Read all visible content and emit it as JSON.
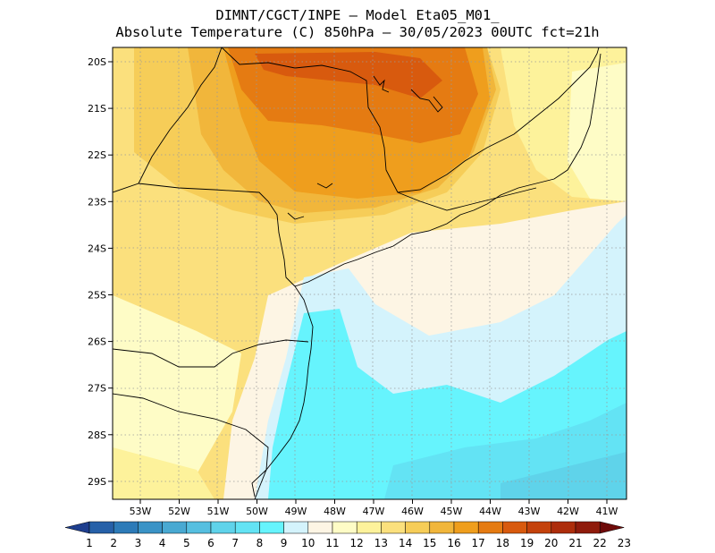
{
  "header": {
    "line1": "DIMNT/CGCT/INPE –  Model Eta05_M01_",
    "line2": "Absolute Temperature (C) 850hPa –  30/05/2023 00UTC fct=21h"
  },
  "map": {
    "lat_labels": [
      "20S",
      "21S",
      "22S",
      "23S",
      "24S",
      "25S",
      "26S",
      "27S",
      "28S",
      "29S"
    ],
    "lon_labels": [
      "53W",
      "52W",
      "51W",
      "50W",
      "49W",
      "48W",
      "47W",
      "46W",
      "45W",
      "44W",
      "43W",
      "42W",
      "41W"
    ]
  },
  "colorbar": {
    "labels": [
      "1",
      "2",
      "3",
      "4",
      "5",
      "6",
      "7",
      "8",
      "9",
      "10",
      "11",
      "12",
      "13",
      "14",
      "15",
      "16",
      "17",
      "18",
      "19",
      "20",
      "21",
      "22",
      "23"
    ],
    "colors": [
      "#1e3e8e",
      "#2660a8",
      "#2d7bb8",
      "#3a93c6",
      "#49a9d2",
      "#56bfe0",
      "#5fd3ea",
      "#63e3f4",
      "#66f4fd",
      "#d4f3fc",
      "#fdf5e4",
      "#fefcc6",
      "#fdf29b",
      "#fbe07d",
      "#f6cd58",
      "#f1b63b",
      "#ef9e1d",
      "#e57b12",
      "#d85a0e",
      "#c4420b",
      "#ad2d0b",
      "#8f1b0b",
      "#6e0a09"
    ]
  }
}
